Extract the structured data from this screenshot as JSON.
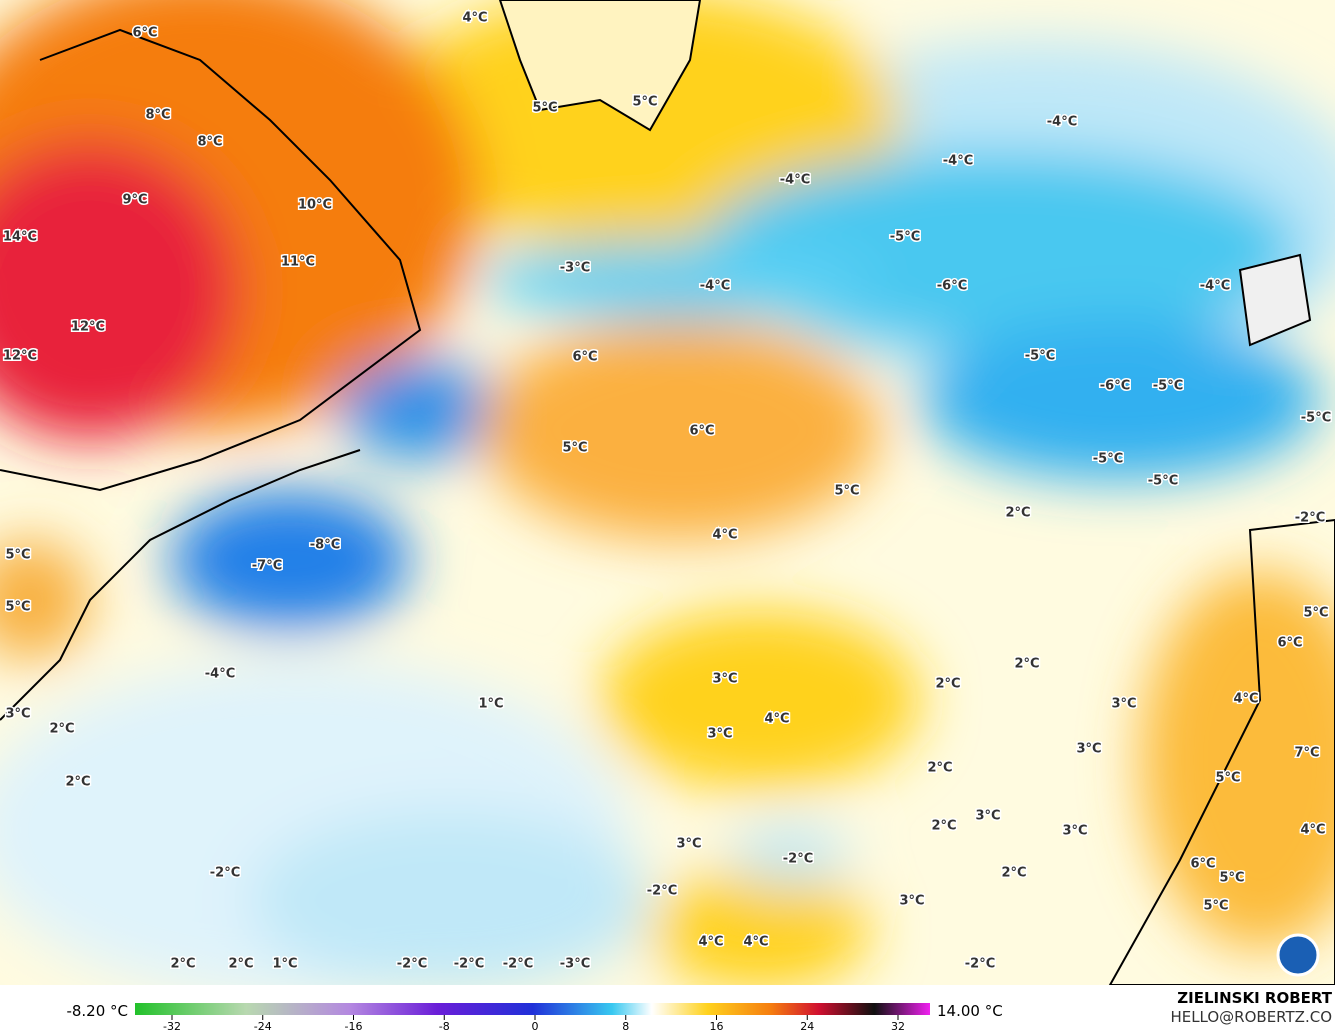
{
  "map": {
    "labels": [
      "6°C",
      "4°C",
      "8°C",
      "8°C",
      "9°C",
      "10°C",
      "14°C",
      "11°C",
      "12°C",
      "12°C",
      "5°C",
      "5°C",
      "-4°C",
      "-4°C",
      "-4°C",
      "-5°C",
      "-3°C",
      "-4°C",
      "-6°C",
      "-4°C",
      "-5°C",
      "6°C",
      "-6°C",
      "-5°C",
      "5°C",
      "6°C",
      "-5°C",
      "-5°C",
      "-5°C",
      "5°C",
      "2°C",
      "-2°C",
      "4°C",
      "-8°C",
      "5°C",
      "-7°C",
      "5°C",
      "5°C",
      "6°C",
      "2°C",
      "-4°C",
      "3°C",
      "2°C",
      "4°C",
      "1°C",
      "3°C",
      "3°C",
      "4°C",
      "3°C",
      "2°C",
      "3°C",
      "7°C",
      "2°C",
      "5°C",
      "2°C",
      "3°C",
      "2°C",
      "3°C",
      "4°C",
      "3°C",
      "-2°C",
      "6°C",
      "-2°C",
      "2°C",
      "5°C",
      "-2°C",
      "3°C",
      "5°C",
      "4°C",
      "4°C",
      "2°C",
      "2°C",
      "1°C",
      "-2°C",
      "-2°C",
      "-2°C",
      "-3°C",
      "-2°C"
    ]
  },
  "colorbar": {
    "lim": [
      -32,
      32
    ],
    "ticks": [
      -32,
      -24,
      -16,
      -8,
      0,
      8,
      16,
      24,
      32
    ],
    "min_label": "-8.20 °C",
    "max_label": "14.00 °C"
  },
  "credits": {
    "author": "ZIELINSKI ROBERT",
    "contact": "HELLO@ROBERTZ.CO"
  }
}
